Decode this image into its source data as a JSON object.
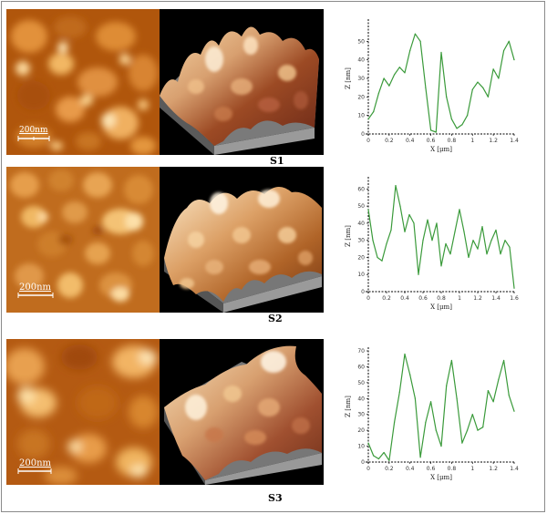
{
  "panels": [
    {
      "label": "S1",
      "scale_bar": "200nm",
      "profile": {
        "xlabel": "X [μm]",
        "ylabel": "Z [nm]",
        "xlim": [
          0,
          1.4
        ],
        "ylim": [
          0,
          60
        ],
        "xticks": [
          "0",
          "0.2",
          "0.4",
          "0.6",
          "0.8",
          "1",
          "1.2",
          "1.4"
        ],
        "yticks": [
          "0",
          "10",
          "20",
          "30",
          "40",
          "50"
        ]
      }
    },
    {
      "label": "S2",
      "scale_bar": "200nm",
      "profile": {
        "xlabel": "X [μm]",
        "ylabel": "Z [nm]",
        "xlim": [
          0,
          1.6
        ],
        "ylim": [
          0,
          65
        ],
        "xticks": [
          "0",
          "0.2",
          "0.4",
          "0.6",
          "0.8",
          "1",
          "1.2",
          "1.4",
          "1.6"
        ],
        "yticks": [
          "0",
          "10",
          "20",
          "30",
          "40",
          "50",
          "60"
        ]
      }
    },
    {
      "label": "S3",
      "scale_bar": "200nm",
      "profile": {
        "xlabel": "X [μm]",
        "ylabel": "Z [nm]",
        "xlim": [
          0,
          1.4
        ],
        "ylim": [
          0,
          70
        ],
        "xticks": [
          "0",
          "0.2",
          "0.4",
          "0.6",
          "0.8",
          "1",
          "1.2",
          "1.4"
        ],
        "yticks": [
          "0",
          "10",
          "20",
          "30",
          "40",
          "50",
          "60",
          "70"
        ]
      }
    }
  ],
  "chart_data": [
    {
      "type": "line",
      "x": [
        0,
        0.05,
        0.1,
        0.15,
        0.2,
        0.25,
        0.3,
        0.35,
        0.4,
        0.45,
        0.5,
        0.55,
        0.6,
        0.65,
        0.7,
        0.75,
        0.8,
        0.85,
        0.9,
        0.95,
        1.0,
        1.05,
        1.1,
        1.15,
        1.2,
        1.25,
        1.3,
        1.35,
        1.4
      ],
      "y": [
        8,
        12,
        22,
        30,
        26,
        32,
        36,
        33,
        45,
        54,
        50,
        25,
        2,
        1,
        44,
        20,
        8,
        3,
        5,
        10,
        24,
        28,
        25,
        20,
        35,
        30,
        45,
        50,
        40
      ],
      "color": "#3a9a3a"
    },
    {
      "type": "line",
      "x": [
        0,
        0.05,
        0.1,
        0.15,
        0.2,
        0.25,
        0.3,
        0.35,
        0.4,
        0.45,
        0.5,
        0.55,
        0.6,
        0.65,
        0.7,
        0.75,
        0.8,
        0.85,
        0.9,
        0.95,
        1.0,
        1.05,
        1.1,
        1.15,
        1.2,
        1.25,
        1.3,
        1.35,
        1.4,
        1.45,
        1.5,
        1.55,
        1.6
      ],
      "y": [
        48,
        30,
        20,
        18,
        28,
        36,
        62,
        50,
        35,
        45,
        40,
        10,
        30,
        42,
        30,
        40,
        15,
        28,
        22,
        35,
        48,
        35,
        20,
        30,
        25,
        38,
        22,
        30,
        36,
        22,
        30,
        26,
        2
      ],
      "color": "#3a9a3a"
    },
    {
      "type": "line",
      "x": [
        0,
        0.05,
        0.1,
        0.15,
        0.2,
        0.25,
        0.3,
        0.35,
        0.4,
        0.45,
        0.5,
        0.55,
        0.6,
        0.65,
        0.7,
        0.75,
        0.8,
        0.85,
        0.9,
        0.95,
        1.0,
        1.05,
        1.1,
        1.15,
        1.2,
        1.25,
        1.3,
        1.35,
        1.4
      ],
      "y": [
        12,
        4,
        2,
        6,
        1,
        25,
        44,
        68,
        55,
        40,
        3,
        25,
        38,
        20,
        10,
        48,
        64,
        40,
        12,
        20,
        30,
        20,
        22,
        45,
        38,
        52,
        64,
        42,
        32
      ],
      "color": "#3a9a3a"
    }
  ]
}
